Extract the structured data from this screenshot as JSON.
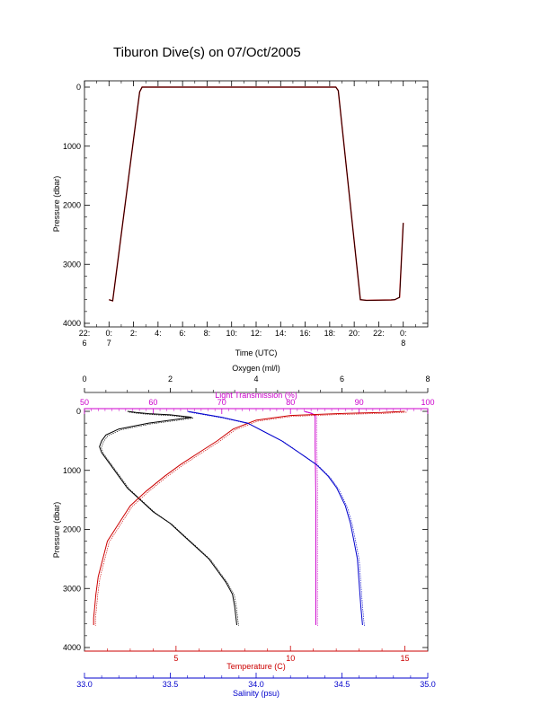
{
  "title": "Tiburon Dive(s) on 07/Oct/2005",
  "chart_data": [
    {
      "type": "line",
      "title": "",
      "xlabel": "Time (UTC)",
      "ylabel": "Pressure (dbar)",
      "x_tick_labels": [
        {
          "top": "22:",
          "bottom": "6"
        },
        {
          "top": "0:",
          "bottom": "7"
        },
        {
          "top": "2:",
          "bottom": ""
        },
        {
          "top": "4:",
          "bottom": ""
        },
        {
          "top": "6:",
          "bottom": ""
        },
        {
          "top": "8:",
          "bottom": ""
        },
        {
          "top": "10:",
          "bottom": ""
        },
        {
          "top": "12:",
          "bottom": ""
        },
        {
          "top": "14:",
          "bottom": ""
        },
        {
          "top": "16:",
          "bottom": ""
        },
        {
          "top": "18:",
          "bottom": ""
        },
        {
          "top": "20:",
          "bottom": ""
        },
        {
          "top": "22:",
          "bottom": ""
        },
        {
          "top": "0:",
          "bottom": "8"
        }
      ],
      "x_tick_hours": [
        -2,
        0,
        2,
        4,
        6,
        8,
        10,
        12,
        14,
        16,
        18,
        20,
        22,
        24
      ],
      "xlim_hours": [
        -2,
        26
      ],
      "ylim": [
        4000,
        0
      ],
      "y_ticks": [
        "0",
        "1000",
        "2000",
        "3000",
        "4000"
      ],
      "series": [
        {
          "color": "#000000",
          "x_hours": [
            0.0,
            0.3,
            2.5,
            2.7,
            18.5,
            18.7,
            20.5,
            21.0,
            23.0,
            23.3,
            23.7,
            24.0
          ],
          "y": [
            3600,
            3620,
            80,
            0,
            0,
            60,
            3600,
            3610,
            3605,
            3600,
            3560,
            2300
          ]
        }
      ]
    },
    {
      "type": "line",
      "title": "",
      "ylabel": "Pressure (dbar)",
      "ylim": [
        4000,
        0
      ],
      "y_ticks": [
        "0",
        "1000",
        "2000",
        "3000",
        "4000"
      ],
      "axes": {
        "oxygen": {
          "label": "Oxygen (ml/l)",
          "range": [
            0,
            8
          ],
          "ticks": [
            "0",
            "2",
            "4",
            "6",
            "8"
          ],
          "color": "#000000"
        },
        "light_transmission": {
          "label": "Light Transmission (%)",
          "range": [
            50,
            100
          ],
          "ticks": [
            "50",
            "60",
            "70",
            "80",
            "90",
            "100"
          ],
          "color": "#cc00cc"
        },
        "temperature": {
          "label": "Temperature (C)",
          "range": [
            1,
            16
          ],
          "ticks": [
            "5",
            "10",
            "15"
          ],
          "color": "#cc0000"
        },
        "salinity": {
          "label": "Salinity (psu)",
          "range": [
            33.0,
            35.0
          ],
          "ticks": [
            "33.0",
            "33.5",
            "34.0",
            "34.5",
            "35.0"
          ],
          "color": "#0000cc"
        }
      },
      "series": [
        {
          "name": "Oxygen",
          "axis": "oxygen",
          "color": "#000000",
          "x": [
            1.0,
            1.2,
            1.5,
            2.0,
            2.5,
            1.5,
            0.8,
            0.5,
            0.4,
            0.35,
            0.4,
            0.6,
            0.8,
            1.0,
            1.3,
            1.6,
            2.0,
            2.3,
            2.6,
            2.9,
            3.1,
            3.3,
            3.45,
            3.5,
            3.55
          ],
          "y": [
            0,
            20,
            40,
            60,
            100,
            200,
            300,
            400,
            500,
            600,
            700,
            900,
            1100,
            1300,
            1500,
            1700,
            1900,
            2100,
            2300,
            2500,
            2700,
            2900,
            3100,
            3300,
            3620
          ]
        },
        {
          "name": "Light Transmission",
          "axis": "light_transmission",
          "color": "#cc00cc",
          "x": [
            82.0,
            83.0,
            83.5,
            83.6,
            83.6,
            83.7,
            83.7,
            83.7
          ],
          "y": [
            0,
            30,
            60,
            100,
            600,
            1500,
            2800,
            3620
          ]
        },
        {
          "name": "Temperature",
          "axis": "temperature",
          "color": "#cc0000",
          "x": [
            15.0,
            14.0,
            12.0,
            10.0,
            8.5,
            7.5,
            6.8,
            6.0,
            5.2,
            4.5,
            3.7,
            3.0,
            2.5,
            2.0,
            1.8,
            1.6,
            1.5,
            1.45,
            1.4,
            1.4
          ],
          "y": [
            0,
            20,
            40,
            70,
            150,
            300,
            500,
            700,
            900,
            1100,
            1350,
            1600,
            1900,
            2200,
            2500,
            2800,
            3100,
            3300,
            3500,
            3620
          ]
        },
        {
          "name": "Salinity",
          "axis": "salinity",
          "color": "#0000cc",
          "x": [
            33.6,
            33.8,
            33.95,
            34.05,
            34.15,
            34.25,
            34.35,
            34.42,
            34.47,
            34.52,
            34.55,
            34.57,
            34.59,
            34.6,
            34.61,
            34.62
          ],
          "y": [
            0,
            100,
            200,
            350,
            500,
            700,
            900,
            1100,
            1300,
            1600,
            1900,
            2200,
            2500,
            2900,
            3300,
            3620
          ]
        }
      ]
    }
  ]
}
